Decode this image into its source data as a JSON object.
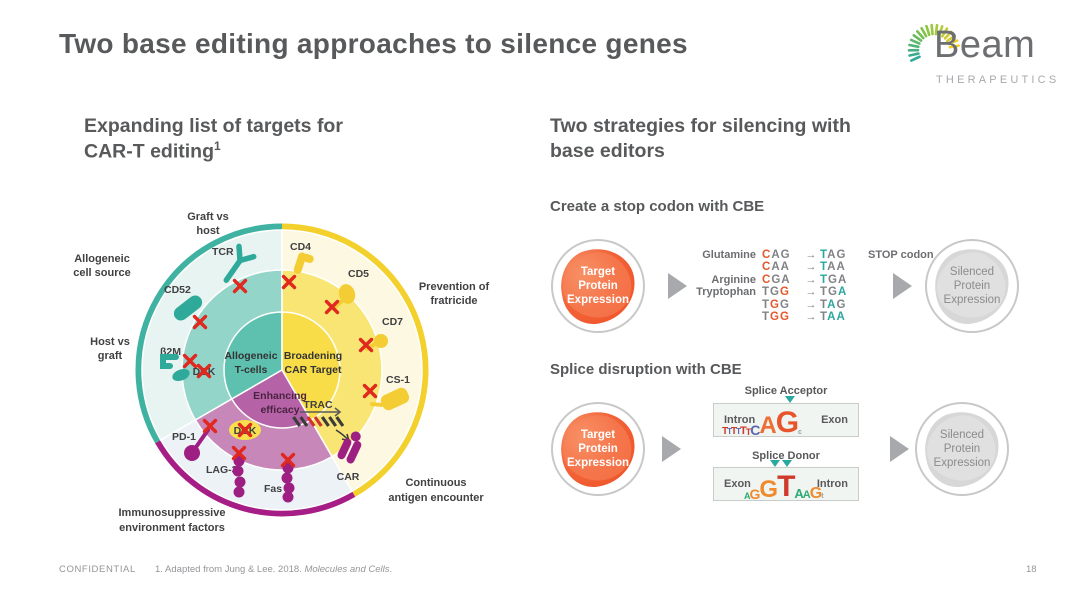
{
  "slide": {
    "title": "Two base editing approaches to silence genes",
    "confidential": "CONFIDENTIAL",
    "footnote_prefix": "1. Adapted from Jung & Lee. 2018. ",
    "footnote_italic": "Molecules and Cells",
    "footnote_suffix": ".",
    "page_number": "18"
  },
  "logo": {
    "name": "Beam",
    "sub": "THERAPEUTICS"
  },
  "colors": {
    "teal": "#2fa99a",
    "yellow": "#f3d02b",
    "magenta": "#a51d85",
    "orange_blob": "#ed4d20",
    "red_x": "#e0281e",
    "codon_orange": "#e4582b",
    "codon_teal": "#2aa79e",
    "text_gray": "#58595b"
  },
  "left": {
    "heading_line1": "Expanding list of targets for",
    "heading_line2": "CAR-T editing",
    "heading_sup": "1",
    "wheel": {
      "outer_labels": {
        "graft1": "Graft vs",
        "graft2": "host",
        "source1": "Allogeneic",
        "source2": "cell source",
        "host1": "Host vs",
        "host2": "graft",
        "fratricide1": "Prevention of",
        "fratricide2": "fratricide",
        "immuno1": "Immunosuppressive",
        "immuno2": "environment factors",
        "continuous1": "Continuous",
        "continuous2": "antigen encounter"
      },
      "center_labels": {
        "allo1": "Allogeneic",
        "allo2": "T-cells",
        "broad1": "Broadening",
        "broad2": "CAR Target",
        "enh1": "Enhancing",
        "enh2": "efficacy"
      },
      "targets": {
        "tcr": "TCR",
        "cd52": "CD52",
        "b2m": "β2M",
        "dck1": "DCK",
        "dck2": "DCK",
        "cd4": "CD4",
        "cd5": "CD5",
        "cd7": "CD7",
        "cs1": "CS-1",
        "pd1": "PD-1",
        "lag3": "LAG-3",
        "fas": "Fas",
        "trac": "TRAC",
        "car": "CAR"
      }
    }
  },
  "right": {
    "heading_line1": "Two strategies for silencing with",
    "heading_line2": "base editors",
    "stop_codon": {
      "heading": "Create a stop codon with CBE",
      "arrow": "→",
      "stop_label": "STOP codon",
      "rows": [
        {
          "amino": "Glutamine",
          "from": [
            [
              "C",
              "o"
            ],
            [
              "A",
              "g"
            ],
            [
              "G",
              "g"
            ]
          ],
          "to": [
            [
              "T",
              "t"
            ],
            [
              "A",
              "g"
            ],
            [
              "G",
              "g"
            ]
          ],
          "note": "STOP codon"
        },
        {
          "amino": "",
          "from": [
            [
              "C",
              "o"
            ],
            [
              "A",
              "g"
            ],
            [
              "A",
              "g"
            ]
          ],
          "to": [
            [
              "T",
              "t"
            ],
            [
              "A",
              "g"
            ],
            [
              "A",
              "g"
            ]
          ]
        },
        {
          "amino": "Arginine",
          "from": [
            [
              "C",
              "o"
            ],
            [
              "G",
              "g"
            ],
            [
              "A",
              "g"
            ]
          ],
          "to": [
            [
              "T",
              "t"
            ],
            [
              "G",
              "g"
            ],
            [
              "A",
              "g"
            ]
          ]
        },
        {
          "amino": "Tryptophan",
          "from": [
            [
              "T",
              "g"
            ],
            [
              "G",
              "g"
            ],
            [
              "G",
              "o"
            ]
          ],
          "to": [
            [
              "T",
              "g"
            ],
            [
              "G",
              "g"
            ],
            [
              "A",
              "t"
            ]
          ]
        },
        {
          "amino": "",
          "from": [
            [
              "T",
              "g"
            ],
            [
              "G",
              "o"
            ],
            [
              "G",
              "g"
            ]
          ],
          "to": [
            [
              "T",
              "g"
            ],
            [
              "A",
              "t"
            ],
            [
              "G",
              "g"
            ]
          ]
        },
        {
          "amino": "",
          "from": [
            [
              "T",
              "g"
            ],
            [
              "G",
              "o"
            ],
            [
              "G",
              "o"
            ]
          ],
          "to": [
            [
              "T",
              "g"
            ],
            [
              "A",
              "t"
            ],
            [
              "A",
              "t"
            ]
          ]
        }
      ]
    },
    "splice": {
      "heading": "Splice disruption with CBE",
      "acceptor": {
        "label": "Splice Acceptor",
        "left": "Intron",
        "right": "Exon",
        "logo": [
          {
            "ch": "T",
            "c": "#cf3a2c",
            "s": 10
          },
          {
            "ch": "T",
            "c": "#5b67ae",
            "s": 8
          },
          {
            "ch": "T",
            "c": "#cf3a2c",
            "s": 10
          },
          {
            "ch": "T",
            "c": "#5b67ae",
            "s": 8
          },
          {
            "ch": "T",
            "c": "#cf3a2c",
            "s": 11
          },
          {
            "ch": "T",
            "c": "#cf3a2c",
            "s": 9
          },
          {
            "ch": "C",
            "c": "#5b67ae",
            "s": 14
          },
          {
            "ch": "A",
            "c": "#ee6f35",
            "s": 24
          },
          {
            "ch": "G",
            "c": "#e8552c",
            "s": 30
          },
          {
            "ch": "c",
            "c": "#9aa0a3",
            "s": 7
          }
        ]
      },
      "donor": {
        "label": "Splice Donor",
        "left": "Exon",
        "right": "Intron",
        "logo": [
          {
            "ch": "A",
            "c": "#2fa977",
            "s": 9
          },
          {
            "ch": "G",
            "c": "#ef8a2e",
            "s": 14
          },
          {
            "ch": "G",
            "c": "#ef8a2e",
            "s": 24
          },
          {
            "ch": "T",
            "c": "#cf3a2c",
            "s": 30
          },
          {
            "ch": "A",
            "c": "#2fa977",
            "s": 13
          },
          {
            "ch": "A",
            "c": "#2fa977",
            "s": 11
          },
          {
            "ch": "G",
            "c": "#ef8a2e",
            "s": 16
          },
          {
            "ch": "t",
            "c": "#9aa0a3",
            "s": 7
          }
        ]
      }
    },
    "circles": {
      "target_1": "Target",
      "target_2": "Protein",
      "target_3": "Expression",
      "silenced_1": "Silenced",
      "silenced_2": "Protein",
      "silenced_3": "Expression"
    }
  }
}
